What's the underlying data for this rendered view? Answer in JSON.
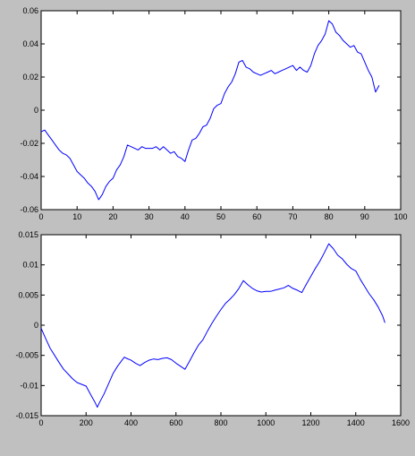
{
  "figure": {
    "background": "#c0c0c0"
  },
  "chart_data": [
    {
      "type": "line",
      "title": "",
      "xlabel": "",
      "ylabel": "",
      "xlim": [
        0,
        100
      ],
      "ylim": [
        -0.06,
        0.06
      ],
      "grid": false,
      "x_ticks": [
        0,
        10,
        20,
        30,
        40,
        50,
        60,
        70,
        80,
        90,
        100
      ],
      "x_tick_labels": [
        "0",
        "10",
        "20",
        "30",
        "40",
        "50",
        "60",
        "70",
        "80",
        "90",
        "100"
      ],
      "y_ticks": [
        -0.06,
        -0.04,
        -0.02,
        0,
        0.02,
        0.04,
        0.06
      ],
      "y_tick_labels": [
        "-0.06",
        "-0.04",
        "-0.02",
        "0",
        "0.02",
        "0.04",
        "0.06"
      ],
      "series": [
        {
          "color": "#0000ff",
          "x": [
            0,
            1,
            2,
            3,
            4,
            5,
            6,
            7,
            8,
            9,
            10,
            11,
            12,
            13,
            14,
            15,
            16,
            17,
            18,
            19,
            20,
            21,
            22,
            23,
            24,
            25,
            26,
            27,
            28,
            29,
            30,
            31,
            32,
            33,
            34,
            35,
            36,
            37,
            38,
            39,
            40,
            41,
            42,
            43,
            44,
            45,
            46,
            47,
            48,
            49,
            50,
            51,
            52,
            53,
            54,
            55,
            56,
            57,
            58,
            59,
            60,
            61,
            62,
            63,
            64,
            65,
            66,
            67,
            68,
            69,
            70,
            71,
            72,
            73,
            74,
            75,
            76,
            77,
            78,
            79,
            80,
            81,
            82,
            83,
            84,
            85,
            86,
            87,
            88,
            89,
            90,
            91,
            92,
            93,
            94
          ],
          "y": [
            -0.013,
            -0.012,
            -0.015,
            -0.018,
            -0.021,
            -0.024,
            -0.026,
            -0.027,
            -0.029,
            -0.033,
            -0.037,
            -0.039,
            -0.041,
            -0.044,
            -0.046,
            -0.049,
            -0.054,
            -0.051,
            -0.046,
            -0.043,
            -0.041,
            -0.036,
            -0.033,
            -0.028,
            -0.021,
            -0.022,
            -0.023,
            -0.024,
            -0.022,
            -0.023,
            -0.023,
            -0.023,
            -0.022,
            -0.024,
            -0.022,
            -0.024,
            -0.026,
            -0.025,
            -0.028,
            -0.029,
            -0.031,
            -0.024,
            -0.018,
            -0.017,
            -0.014,
            -0.01,
            -0.009,
            -0.005,
            0.001,
            0.003,
            0.004,
            0.01,
            0.014,
            0.017,
            0.022,
            0.029,
            0.03,
            0.026,
            0.025,
            0.023,
            0.022,
            0.021,
            0.022,
            0.023,
            0.024,
            0.022,
            0.023,
            0.024,
            0.025,
            0.026,
            0.027,
            0.024,
            0.026,
            0.024,
            0.023,
            0.027,
            0.034,
            0.039,
            0.042,
            0.046,
            0.054,
            0.052,
            0.047,
            0.045,
            0.042,
            0.04,
            0.038,
            0.039,
            0.035,
            0.034,
            0.029,
            0.024,
            0.02,
            0.011,
            0.015
          ]
        }
      ]
    },
    {
      "type": "line",
      "title": "",
      "xlabel": "",
      "ylabel": "",
      "xlim": [
        0,
        1600
      ],
      "ylim": [
        -0.015,
        0.015
      ],
      "grid": false,
      "x_ticks": [
        0,
        200,
        400,
        600,
        800,
        1000,
        1200,
        1400,
        1600
      ],
      "x_tick_labels": [
        "0",
        "200",
        "400",
        "600",
        "800",
        "1000",
        "1200",
        "1400",
        "1600"
      ],
      "y_ticks": [
        -0.015,
        -0.01,
        -0.005,
        0,
        0.005,
        0.01,
        0.015
      ],
      "y_tick_labels": [
        "-0.015",
        "-0.01",
        "-0.005",
        "0",
        "0.005",
        "0.01",
        "0.015"
      ],
      "series": [
        {
          "color": "#0000ff",
          "x": [
            0,
            20,
            40,
            60,
            80,
            100,
            120,
            140,
            160,
            180,
            200,
            220,
            240,
            250,
            260,
            280,
            300,
            320,
            340,
            360,
            370,
            380,
            400,
            420,
            440,
            460,
            480,
            500,
            520,
            540,
            560,
            580,
            600,
            620,
            640,
            660,
            680,
            700,
            720,
            740,
            760,
            780,
            800,
            820,
            840,
            860,
            880,
            900,
            920,
            940,
            960,
            980,
            1000,
            1020,
            1040,
            1060,
            1080,
            1100,
            1120,
            1140,
            1160,
            1180,
            1200,
            1220,
            1240,
            1260,
            1280,
            1300,
            1320,
            1340,
            1360,
            1380,
            1400,
            1420,
            1440,
            1460,
            1480,
            1500,
            1520,
            1530
          ],
          "y": [
            -0.0005,
            -0.0022,
            -0.0038,
            -0.005,
            -0.0062,
            -0.0073,
            -0.0081,
            -0.0089,
            -0.0095,
            -0.0098,
            -0.0101,
            -0.0115,
            -0.0128,
            -0.0136,
            -0.0128,
            -0.0114,
            -0.0097,
            -0.008,
            -0.0068,
            -0.0058,
            -0.0053,
            -0.0055,
            -0.0058,
            -0.0063,
            -0.0067,
            -0.0062,
            -0.0058,
            -0.0056,
            -0.0057,
            -0.0055,
            -0.0054,
            -0.0057,
            -0.0063,
            -0.0068,
            -0.0073,
            -0.006,
            -0.0046,
            -0.0033,
            -0.0024,
            -0.001,
            0.0003,
            0.0015,
            0.0026,
            0.0036,
            0.0043,
            0.0051,
            0.0061,
            0.0074,
            0.0067,
            0.0061,
            0.0057,
            0.0055,
            0.0056,
            0.0056,
            0.0058,
            0.006,
            0.0062,
            0.0066,
            0.0061,
            0.0058,
            0.0054,
            0.0068,
            0.0081,
            0.0094,
            0.0106,
            0.012,
            0.0135,
            0.0127,
            0.0116,
            0.011,
            0.0101,
            0.0094,
            0.009,
            0.0076,
            0.0064,
            0.0052,
            0.0042,
            0.003,
            0.0015,
            0.0004
          ]
        }
      ]
    }
  ]
}
